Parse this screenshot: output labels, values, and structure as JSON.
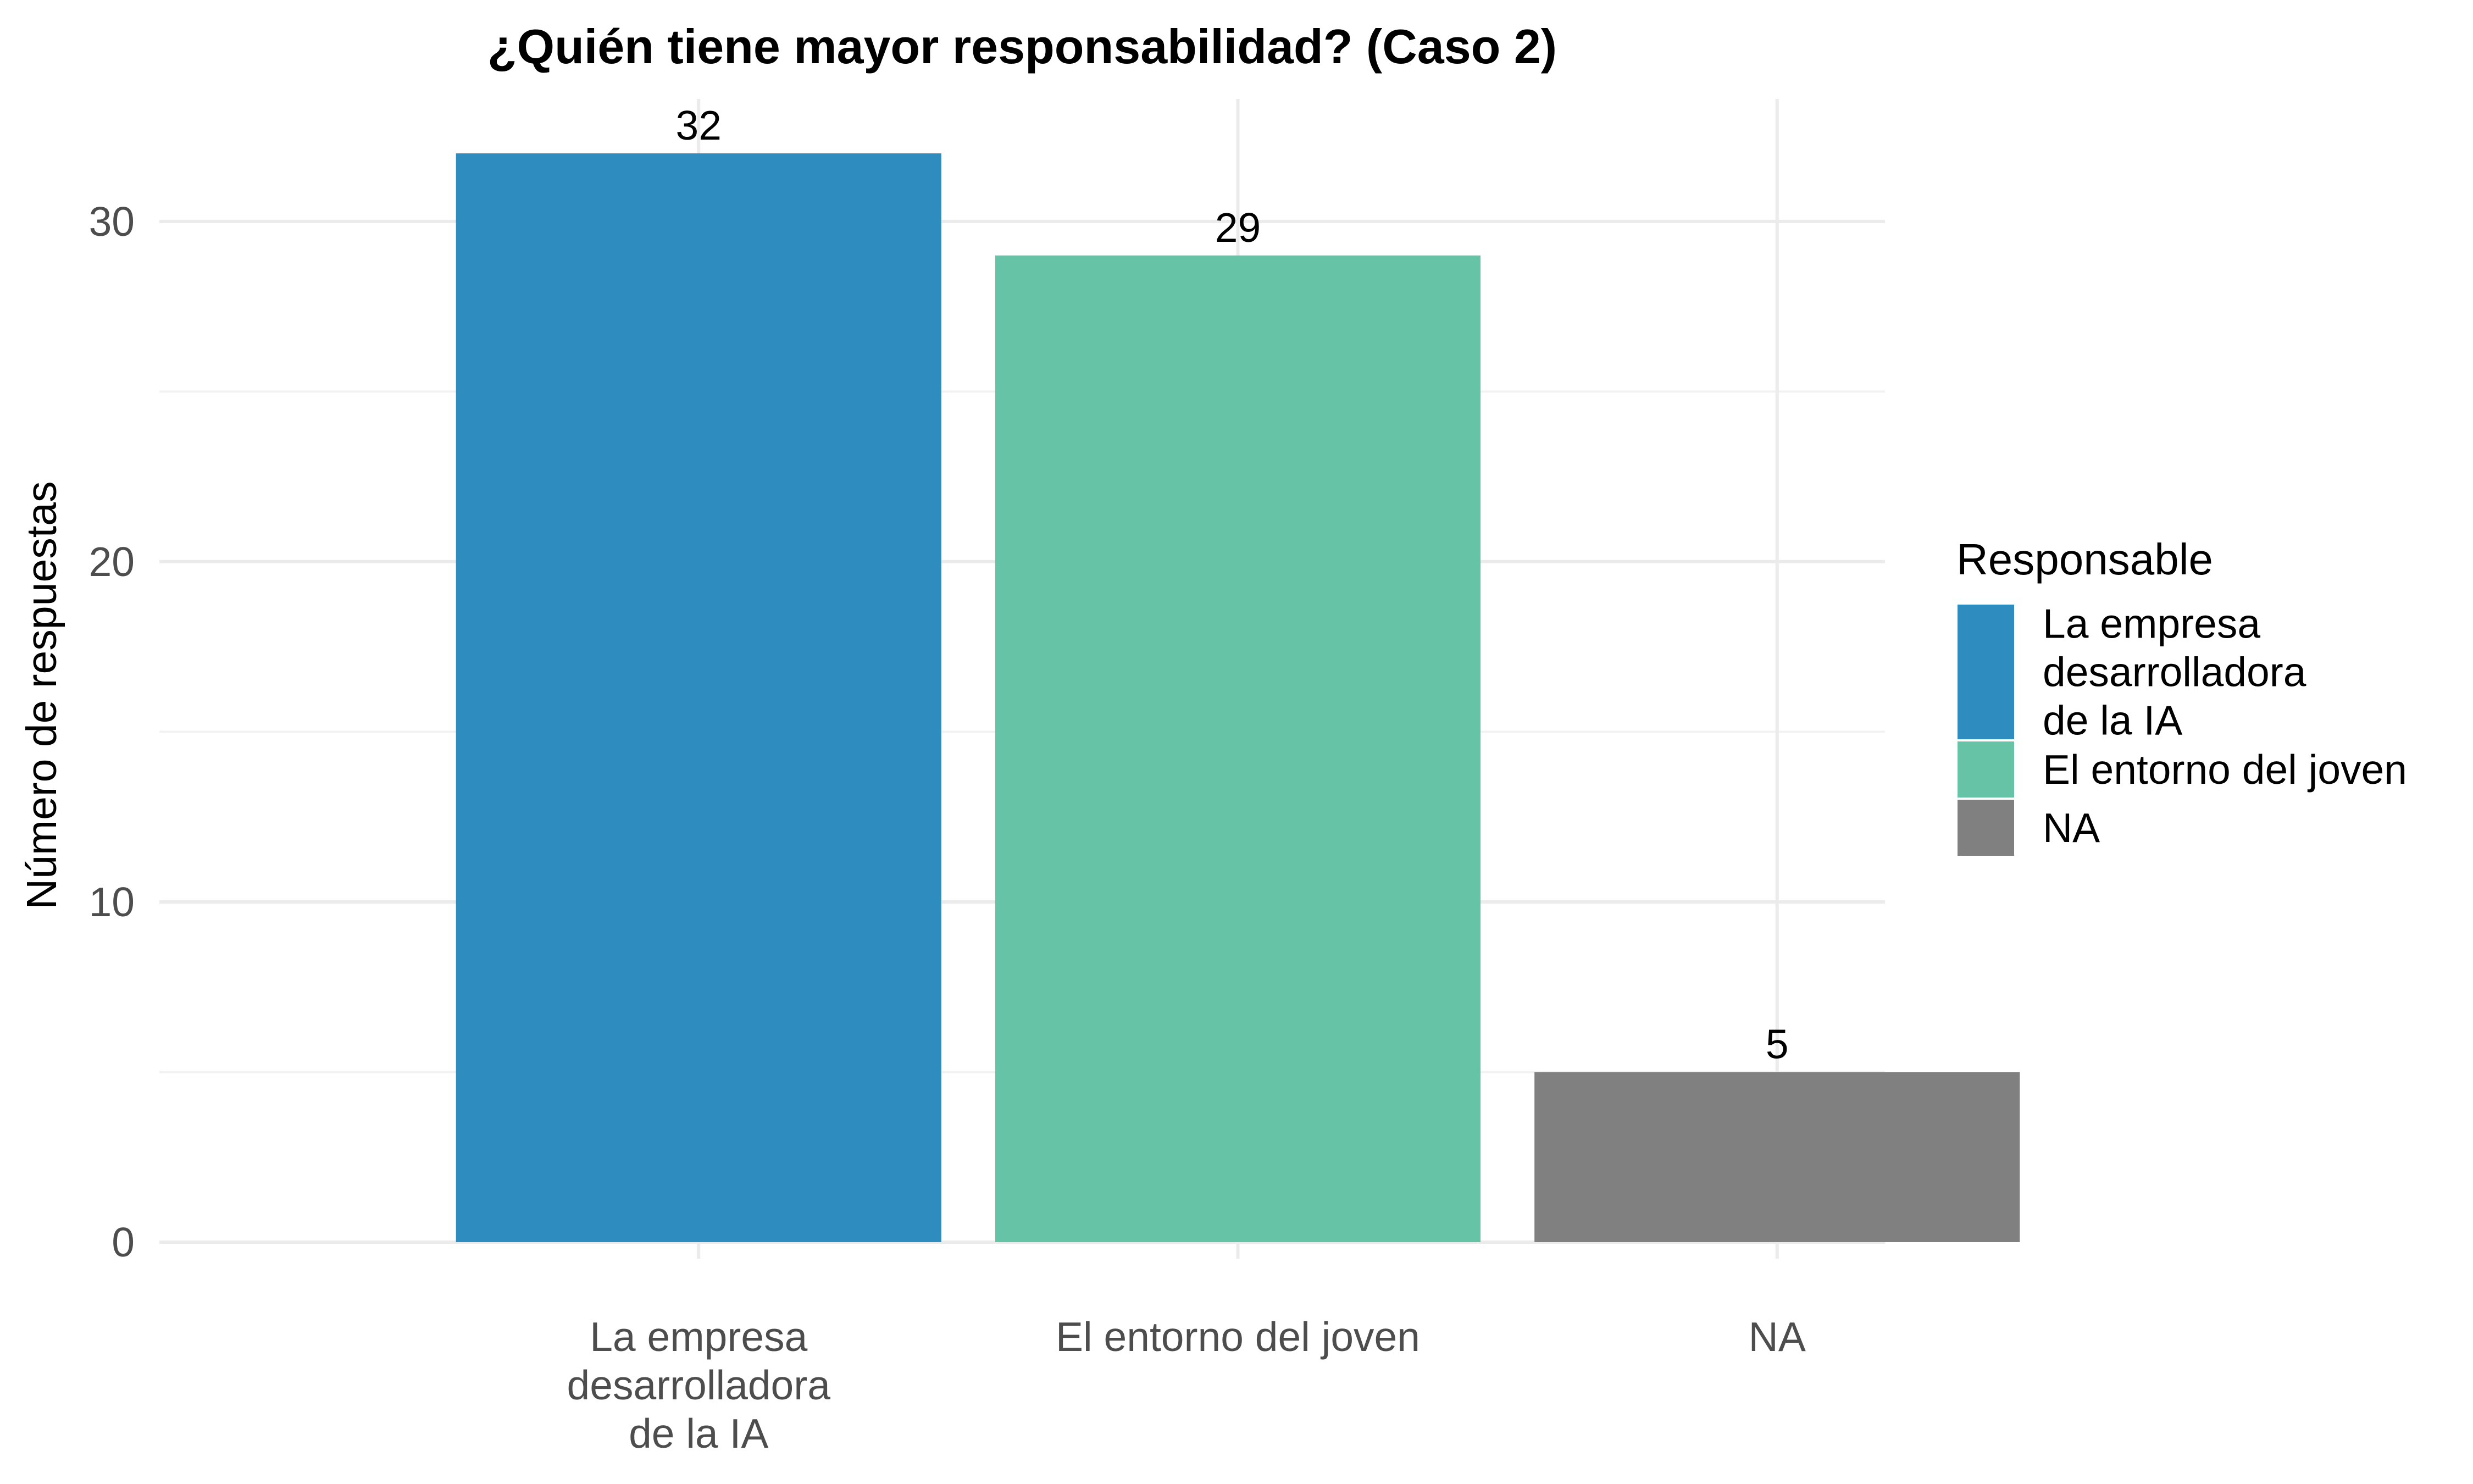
{
  "chart_data": {
    "type": "bar",
    "title": "¿Quién tiene mayor responsabilidad? (Caso 2)",
    "xlabel": "",
    "ylabel": "Número de respuestas",
    "categories": [
      [
        "La empresa",
        "desarrolladora",
        "de la IA"
      ],
      [
        "El entorno del joven"
      ],
      [
        "NA"
      ]
    ],
    "values": [
      32,
      29,
      5
    ],
    "data_labels": [
      "32",
      "29",
      "5"
    ],
    "colors": [
      "#2E8CBF",
      "#66C3A5",
      "#808080"
    ],
    "ylim": [
      0,
      33.6
    ],
    "y_ticks": [
      0,
      10,
      20,
      30
    ],
    "y_tick_labels": [
      "0",
      "10",
      "20",
      "30"
    ],
    "grid": true,
    "legend": {
      "title": "Responsable",
      "position": "right",
      "entries": [
        [
          "La empresa",
          "desarrolladora",
          "de la IA"
        ],
        [
          "El entorno del joven"
        ],
        [
          "NA"
        ]
      ]
    }
  }
}
